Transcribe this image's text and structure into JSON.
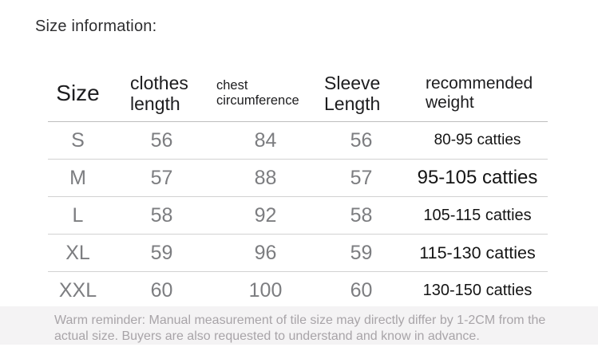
{
  "title": "Size information:",
  "table": {
    "headers": [
      {
        "id": "size",
        "label": "Size"
      },
      {
        "id": "clothes-length",
        "label": "clothes length"
      },
      {
        "id": "chest-circumference",
        "label": "chest circumference"
      },
      {
        "id": "sleeve-length",
        "label": "Sleeve Length"
      },
      {
        "id": "recommended-weight",
        "label": "recommended weight"
      }
    ],
    "rows": [
      {
        "size": "S",
        "clothes_length": "56",
        "chest_circumference": "84",
        "sleeve_length": "56",
        "recommended_weight": "80-95 catties"
      },
      {
        "size": "M",
        "clothes_length": "57",
        "chest_circumference": "88",
        "sleeve_length": "57",
        "recommended_weight": "95-105 catties"
      },
      {
        "size": "L",
        "clothes_length": "58",
        "chest_circumference": "92",
        "sleeve_length": "58",
        "recommended_weight": "105-115 catties"
      },
      {
        "size": "XL",
        "clothes_length": "59",
        "chest_circumference": "96",
        "sleeve_length": "59",
        "recommended_weight": "115-130 catties"
      },
      {
        "size": "XXL",
        "clothes_length": "60",
        "chest_circumference": "100",
        "sleeve_length": "60",
        "recommended_weight": "130-150 catties"
      }
    ]
  },
  "footer": {
    "note": "Warm reminder: Manual measurement of tile size may directly differ by 1-2CM from the actual size. Buyers are also requested to understand and know in advance."
  },
  "colors": {
    "header_text": "#1d1d1f",
    "value_text": "#7c7d80",
    "weight_text": "#141414",
    "divider": "#d2d2d2",
    "note_text": "#a8a4a8",
    "note_background": "#f4f3f4"
  }
}
